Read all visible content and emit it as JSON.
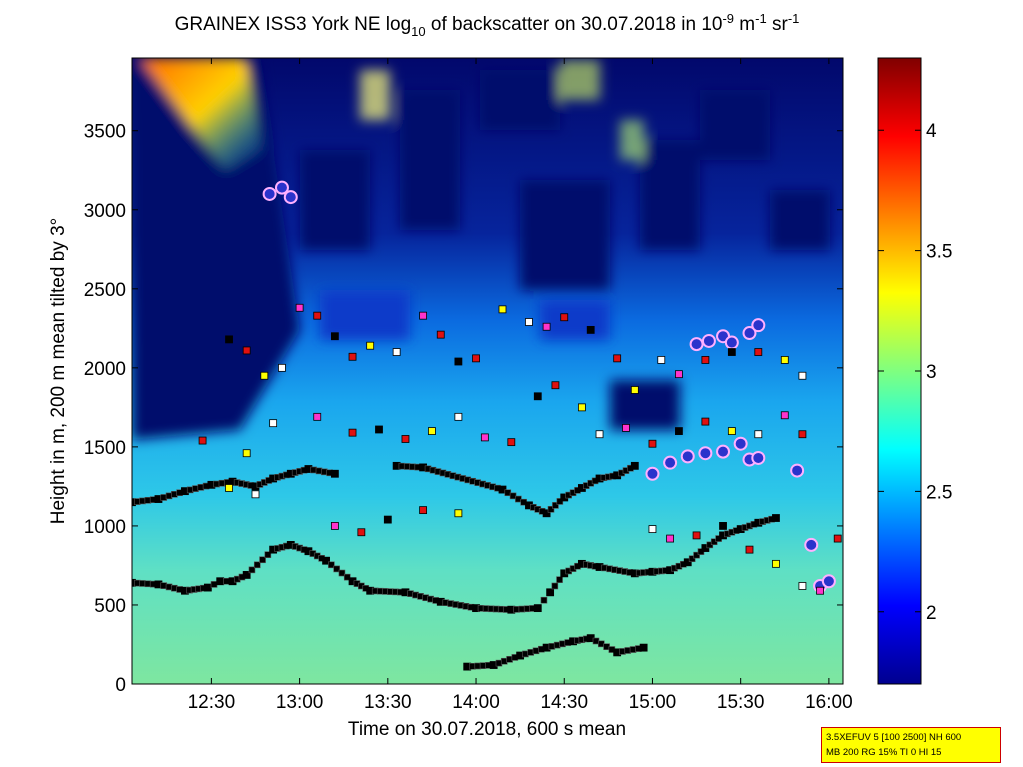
{
  "figure": {
    "title": {
      "prefix": "GRAINEX ISS3 York NE log",
      "log_base": "10",
      "middle": " of backscatter on 30.07.2018 in 10",
      "exp1": "-9",
      "unit_m": " m",
      "exp2": "-1",
      "unit_sr": " sr",
      "exp3": "-1"
    },
    "info_box": {
      "line1": "3.5XEFUV 5 [100 2500] NH 600",
      "line2": "MB 200 RG 15% TI 0 HI 15"
    }
  },
  "chart_data": {
    "type": "heatmap",
    "xlabel": "Time on 30.07.2018, 600 s mean",
    "ylabel": "Height in m, 200 m mean tilted by 3°",
    "x_unit": "hours",
    "xlim": [
      12.05,
      16.08
    ],
    "ylim": [
      0,
      3960
    ],
    "x_ticks": [
      {
        "value": 12.5,
        "label": "12:30"
      },
      {
        "value": 13.0,
        "label": "13:00"
      },
      {
        "value": 13.5,
        "label": "13:30"
      },
      {
        "value": 14.0,
        "label": "14:00"
      },
      {
        "value": 14.5,
        "label": "14:30"
      },
      {
        "value": 15.0,
        "label": "15:00"
      },
      {
        "value": 15.5,
        "label": "15:30"
      },
      {
        "value": 16.0,
        "label": "16:00"
      }
    ],
    "y_ticks": [
      {
        "value": 0,
        "label": "0"
      },
      {
        "value": 500,
        "label": "500"
      },
      {
        "value": 1000,
        "label": "1000"
      },
      {
        "value": 1500,
        "label": "1500"
      },
      {
        "value": 2000,
        "label": "2000"
      },
      {
        "value": 2500,
        "label": "2500"
      },
      {
        "value": 3000,
        "label": "3000"
      },
      {
        "value": 3500,
        "label": "3500"
      }
    ],
    "colorbar": {
      "colormap": "jet",
      "range": [
        1.7,
        4.3
      ],
      "ticks": [
        {
          "value": 2,
          "label": "2"
        },
        {
          "value": 2.5,
          "label": "2.5"
        },
        {
          "value": 3,
          "label": "3"
        },
        {
          "value": 3.5,
          "label": "3.5"
        },
        {
          "value": 4,
          "label": "4"
        }
      ]
    },
    "colors": {
      "marker_black": "#000000",
      "marker_white": "#ffffff",
      "marker_red": "#e01010",
      "marker_yellow": "#ffff00",
      "marker_magenta": "#ff33cc",
      "cloud_base": "#2a33cc"
    },
    "layers": [
      {
        "name": "lowest layer",
        "marker": "black",
        "points": [
          [
            12.05,
            640
          ],
          [
            12.2,
            630
          ],
          [
            12.35,
            590
          ],
          [
            12.48,
            610
          ],
          [
            12.55,
            650
          ],
          [
            12.62,
            650
          ],
          [
            12.7,
            690
          ],
          [
            12.85,
            850
          ],
          [
            12.95,
            880
          ],
          [
            13.05,
            840
          ],
          [
            13.15,
            780
          ],
          [
            13.3,
            650
          ],
          [
            13.4,
            590
          ],
          [
            13.6,
            580
          ],
          [
            13.8,
            520
          ],
          [
            14.0,
            480
          ],
          [
            14.2,
            470
          ],
          [
            14.35,
            480
          ],
          [
            14.42,
            580
          ],
          [
            14.5,
            700
          ],
          [
            14.6,
            760
          ],
          [
            14.7,
            740
          ],
          [
            14.9,
            700
          ],
          [
            15.0,
            710
          ],
          [
            15.1,
            720
          ],
          [
            15.2,
            770
          ],
          [
            15.3,
            860
          ],
          [
            15.4,
            940
          ],
          [
            15.5,
            980
          ],
          [
            15.6,
            1020
          ],
          [
            15.7,
            1050
          ]
        ]
      },
      {
        "name": "boundary layer top",
        "marker": "black",
        "points": [
          [
            12.05,
            1150
          ],
          [
            12.2,
            1170
          ],
          [
            12.35,
            1220
          ],
          [
            12.5,
            1260
          ],
          [
            12.62,
            1280
          ],
          [
            12.75,
            1250
          ],
          [
            12.85,
            1300
          ],
          [
            12.95,
            1330
          ],
          [
            13.05,
            1360
          ],
          [
            13.2,
            1330
          ]
        ]
      },
      {
        "name": "mid layer",
        "marker": "black",
        "points": [
          [
            13.55,
            1380
          ],
          [
            13.7,
            1370
          ],
          [
            14.15,
            1230
          ],
          [
            14.3,
            1130
          ],
          [
            14.4,
            1080
          ],
          [
            14.5,
            1180
          ],
          [
            14.6,
            1240
          ],
          [
            14.7,
            1300
          ],
          [
            14.8,
            1320
          ],
          [
            14.9,
            1380
          ]
        ]
      },
      {
        "name": "low trace",
        "marker": "black",
        "points": [
          [
            13.95,
            110
          ],
          [
            14.1,
            120
          ],
          [
            14.25,
            180
          ],
          [
            14.4,
            230
          ],
          [
            14.55,
            270
          ],
          [
            14.65,
            290
          ],
          [
            14.8,
            200
          ],
          [
            14.95,
            230
          ]
        ]
      },
      {
        "name": "cloud base",
        "marker": "cloud",
        "points": [
          [
            12.83,
            3100
          ],
          [
            12.9,
            3140
          ],
          [
            12.95,
            3080
          ],
          [
            15.25,
            2150
          ],
          [
            15.32,
            2170
          ],
          [
            15.4,
            2200
          ],
          [
            15.45,
            2160
          ],
          [
            15.55,
            2220
          ],
          [
            15.6,
            2270
          ],
          [
            15.0,
            1330
          ],
          [
            15.1,
            1400
          ],
          [
            15.2,
            1440
          ],
          [
            15.3,
            1460
          ],
          [
            15.4,
            1470
          ],
          [
            15.5,
            1520
          ],
          [
            15.55,
            1420
          ],
          [
            15.6,
            1430
          ],
          [
            15.82,
            1350
          ],
          [
            15.9,
            880
          ],
          [
            15.95,
            620
          ],
          [
            16.0,
            650
          ]
        ]
      },
      {
        "name": "scattered 2000 m",
        "marker": "mixed",
        "points": [
          [
            12.6,
            2180
          ],
          [
            12.7,
            2110
          ],
          [
            12.8,
            1950
          ],
          [
            12.9,
            2000
          ],
          [
            13.0,
            2380
          ],
          [
            13.1,
            2330
          ],
          [
            13.2,
            2200
          ],
          [
            13.3,
            2070
          ],
          [
            13.4,
            2140
          ],
          [
            13.55,
            2100
          ],
          [
            13.7,
            2330
          ],
          [
            13.8,
            2210
          ],
          [
            13.9,
            2040
          ],
          [
            14.0,
            2060
          ],
          [
            14.15,
            2370
          ],
          [
            14.3,
            2290
          ],
          [
            14.4,
            2260
          ],
          [
            14.5,
            2320
          ],
          [
            14.65,
            2240
          ],
          [
            14.8,
            2060
          ],
          [
            14.9,
            1860
          ],
          [
            15.05,
            2050
          ],
          [
            15.15,
            1960
          ],
          [
            15.3,
            2050
          ],
          [
            15.45,
            2100
          ],
          [
            15.6,
            2100
          ],
          [
            15.75,
            2050
          ],
          [
            15.85,
            1950
          ]
        ]
      },
      {
        "name": "scattered 1600 m",
        "marker": "mixed",
        "points": [
          [
            12.45,
            1540
          ],
          [
            12.7,
            1460
          ],
          [
            12.85,
            1650
          ],
          [
            13.1,
            1690
          ],
          [
            13.3,
            1590
          ],
          [
            13.45,
            1610
          ],
          [
            13.6,
            1550
          ],
          [
            13.75,
            1600
          ],
          [
            13.9,
            1690
          ],
          [
            14.05,
            1560
          ],
          [
            14.2,
            1530
          ],
          [
            14.35,
            1820
          ],
          [
            14.45,
            1890
          ],
          [
            14.6,
            1750
          ],
          [
            14.7,
            1580
          ],
          [
            14.85,
            1620
          ],
          [
            15.0,
            1520
          ],
          [
            15.15,
            1600
          ],
          [
            15.3,
            1660
          ],
          [
            15.45,
            1600
          ],
          [
            15.6,
            1580
          ],
          [
            15.75,
            1700
          ],
          [
            15.85,
            1580
          ]
        ]
      },
      {
        "name": "scattered 1000 m",
        "marker": "mixed",
        "points": [
          [
            12.6,
            1240
          ],
          [
            12.75,
            1200
          ],
          [
            13.2,
            1000
          ],
          [
            13.35,
            960
          ],
          [
            13.5,
            1040
          ],
          [
            13.7,
            1100
          ],
          [
            13.9,
            1080
          ],
          [
            15.0,
            980
          ],
          [
            15.1,
            920
          ],
          [
            15.25,
            940
          ],
          [
            15.4,
            1000
          ],
          [
            15.55,
            850
          ],
          [
            15.7,
            760
          ],
          [
            15.85,
            620
          ],
          [
            15.95,
            590
          ],
          [
            16.05,
            920
          ]
        ]
      }
    ]
  }
}
